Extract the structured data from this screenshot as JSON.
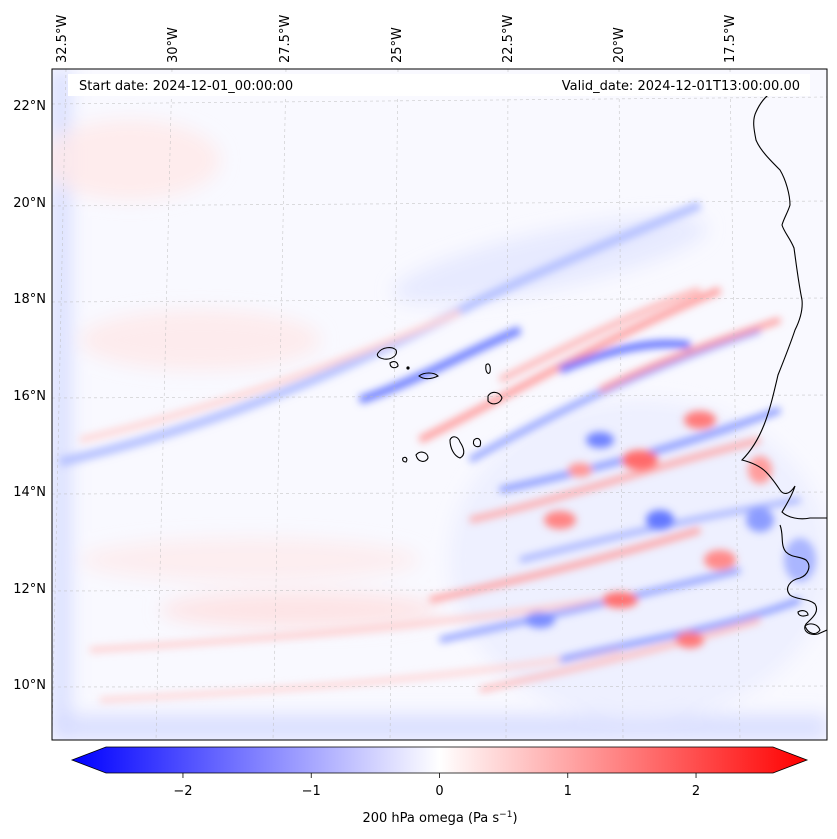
{
  "header": {
    "start_date": "Start date: 2024-12-01_00:00:00",
    "valid_date": "Valid_date: 2024-12-01T13:00:00.00"
  },
  "axes": {
    "lon_labels": [
      "32.5°W",
      "30°W",
      "27.5°W",
      "25°W",
      "22.5°W",
      "20°W",
      "17.5°W"
    ],
    "lat_labels": [
      "22°N",
      "20°N",
      "18°N",
      "16°N",
      "14°N",
      "12°N",
      "10°N"
    ]
  },
  "colorbar": {
    "label": "200 hPa omega (Pa s",
    "label_sup": "−1",
    "label_close": ")",
    "ticks": [
      "−2",
      "−1",
      "0",
      "1",
      "2"
    ],
    "min": -2.6,
    "max": 2.6,
    "tick_values": [
      -2,
      -1,
      0,
      1,
      2
    ],
    "color_negative": "#0000ff",
    "color_zero": "#ffffff",
    "color_positive": "#ff0000"
  }
}
